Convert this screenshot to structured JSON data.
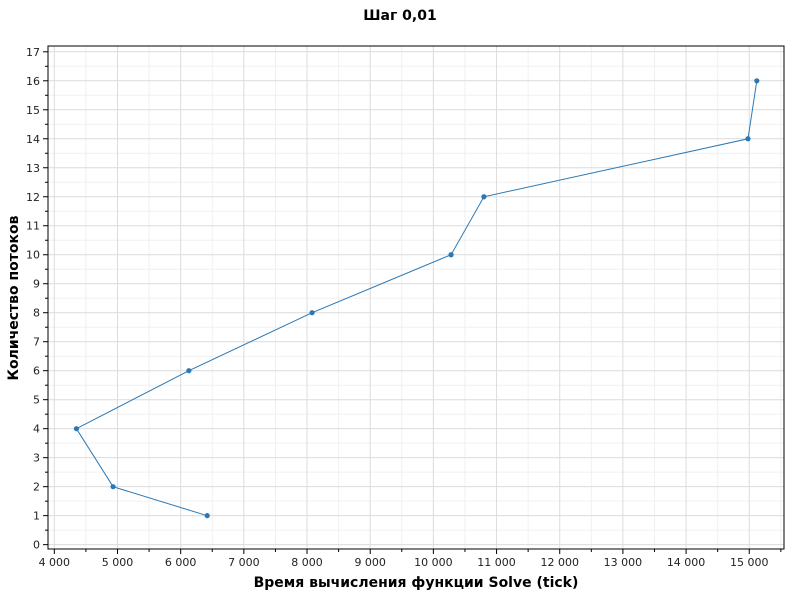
{
  "chart_data": {
    "type": "line",
    "title": "Шаг 0,01",
    "xlabel": "Время вычисления функции Solve (tick)",
    "ylabel": "Количество потоков",
    "xlim": [
      3900,
      15550
    ],
    "ylim": [
      -0.15,
      17.2
    ],
    "x_ticks": [
      4000,
      5000,
      6000,
      7000,
      8000,
      9000,
      10000,
      11000,
      12000,
      13000,
      14000,
      15000
    ],
    "x_tick_labels": [
      "4 000",
      "5 000",
      "6 000",
      "7 000",
      "8 000",
      "9 000",
      "10 000",
      "11 000",
      "12 000",
      "13 000",
      "14 000",
      "15 000"
    ],
    "y_ticks": [
      0,
      1,
      2,
      3,
      4,
      5,
      6,
      7,
      8,
      9,
      10,
      11,
      12,
      13,
      14,
      15,
      16,
      17
    ],
    "y_tick_labels": [
      "0",
      "1",
      "2",
      "3",
      "4",
      "5",
      "6",
      "7",
      "8",
      "9",
      "10",
      "11",
      "12",
      "13",
      "14",
      "15",
      "16",
      "17"
    ],
    "grid": true,
    "series": [
      {
        "color": "#2b78b4",
        "points": [
          {
            "x": 6420,
            "y": 1
          },
          {
            "x": 4930,
            "y": 2
          },
          {
            "x": 4350,
            "y": 4
          },
          {
            "x": 6130,
            "y": 6
          },
          {
            "x": 8080,
            "y": 8
          },
          {
            "x": 10280,
            "y": 10
          },
          {
            "x": 10800,
            "y": 12
          },
          {
            "x": 14980,
            "y": 14
          },
          {
            "x": 15120,
            "y": 16
          }
        ]
      }
    ]
  }
}
